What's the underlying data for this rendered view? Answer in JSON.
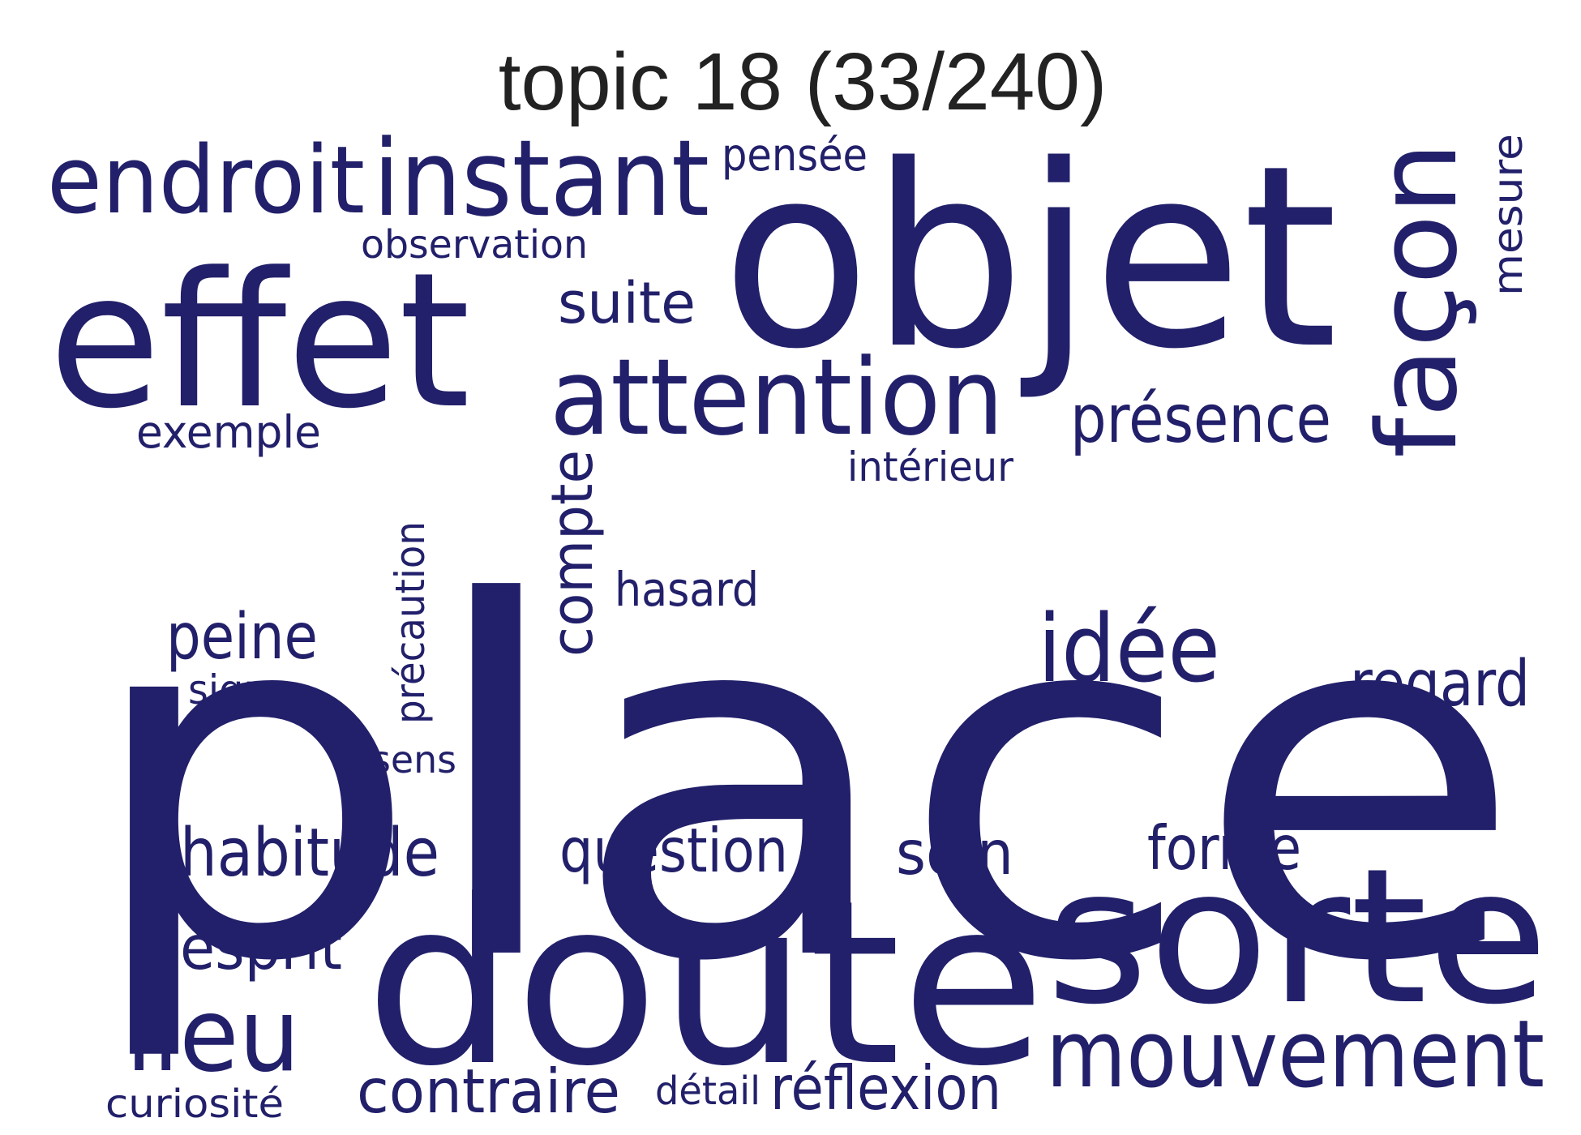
{
  "title": "topic 18 (33/240)",
  "word_color": "#22206a",
  "words": [
    "place",
    "objet",
    "doute",
    "sorte",
    "effet",
    "attention",
    "façon",
    "instant",
    "endroit",
    "mouvement",
    "idée",
    "lieu",
    "présence",
    "compte",
    "habitude",
    "regard",
    "peine",
    "question",
    "contraire",
    "réflexion",
    "soin",
    "forme",
    "esprit",
    "suite",
    "précaution",
    "hasard",
    "pensée",
    "observation",
    "exemple",
    "intérieur",
    "signe",
    "mesure",
    "sens",
    "curiosité",
    "détail"
  ]
}
